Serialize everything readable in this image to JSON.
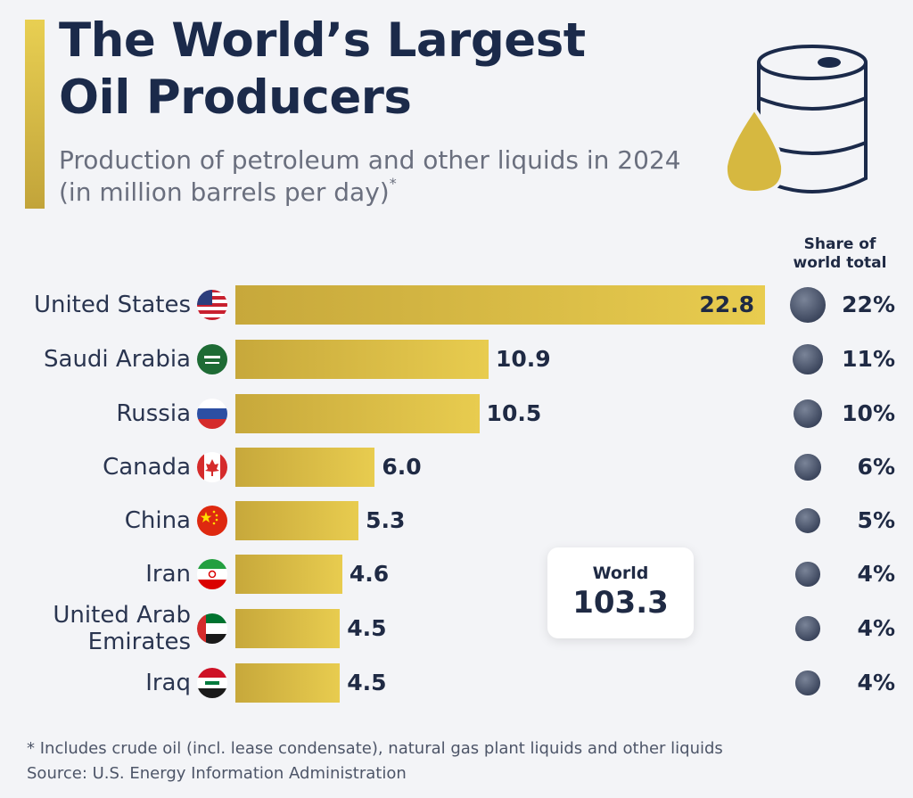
{
  "header": {
    "title": "The World’s Largest Oil Producers",
    "subtitle": "Production of petroleum and other liquids in 2024 (in million barrels per day)",
    "subtitle_mark": "*",
    "share_header": "Share of world total"
  },
  "world": {
    "label": "World",
    "value": "103.3"
  },
  "footnote": "* Includes crude oil (incl. lease condensate), natural gas plant liquids and other liquids",
  "source": "Source: U.S. Energy Information Administration",
  "colors": {
    "bar": "#d9bc45",
    "accent": "#e3c64d",
    "text": "#1f2a44",
    "dot": "#3d475e"
  },
  "chart_data": {
    "type": "bar",
    "orientation": "horizontal",
    "title": "The World’s Largest Oil Producers",
    "subtitle": "Production of petroleum and other liquids in 2024 (in million barrels per day)",
    "categories": [
      "United States",
      "Saudi Arabia",
      "Russia",
      "Canada",
      "China",
      "Iran",
      "United Arab Emirates",
      "Iraq"
    ],
    "values": [
      22.8,
      10.9,
      10.5,
      6.0,
      5.3,
      4.6,
      4.5,
      4.5
    ],
    "value_labels": [
      "22.8",
      "10.9",
      "10.5",
      "6.0",
      "5.3",
      "4.6",
      "4.5",
      "4.5"
    ],
    "share_of_world_total": [
      22,
      11,
      10,
      6,
      5,
      4,
      4,
      4
    ],
    "share_labels": [
      "22%",
      "11%",
      "10%",
      "6%",
      "5%",
      "4%",
      "4%",
      "4%"
    ],
    "flags": [
      "us-flag-icon",
      "saudi-arabia-flag-icon",
      "russia-flag-icon",
      "canada-flag-icon",
      "china-flag-icon",
      "iran-flag-icon",
      "uae-flag-icon",
      "iraq-flag-icon"
    ],
    "world_total": 103.3,
    "grid": false,
    "legend": "none"
  }
}
